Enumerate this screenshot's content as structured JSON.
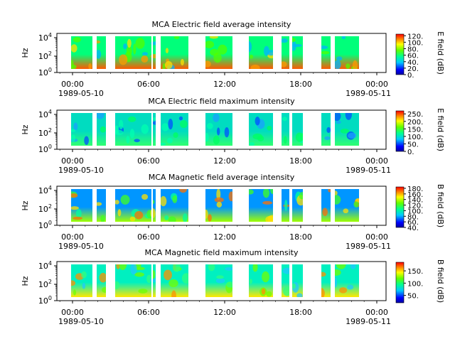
{
  "chart_data": [
    {
      "type": "heatmap",
      "title": "MCA  Electric field average intensity",
      "ylabel": "Hz",
      "y_scale": "log",
      "y_ticks": [
        "10^4",
        "10^2",
        "10^0"
      ],
      "x_ticks": [
        "00:00",
        "06:00",
        "12:00",
        "18:00",
        "00:00"
      ],
      "x_dates": {
        "start": "1989-05-10",
        "end": "1989-05-11"
      },
      "colorbar_label": "E field (dB)",
      "colorbar_ticks": [
        "120.",
        "100.",
        "80.",
        "60.",
        "40.",
        "20.",
        "0."
      ],
      "colorbar_range": [
        0,
        125
      ]
    },
    {
      "type": "heatmap",
      "title": "MCA  Electric field maximum intensity",
      "ylabel": "Hz",
      "y_scale": "log",
      "y_ticks": [
        "10^4",
        "10^2",
        "10^0"
      ],
      "x_ticks": [
        "00:00",
        "06:00",
        "12:00",
        "18:00",
        "00:00"
      ],
      "x_dates": {
        "start": "1989-05-10",
        "end": "1989-05-11"
      },
      "colorbar_label": "E field (dB)",
      "colorbar_ticks": [
        "250.",
        "200.",
        "150.",
        "100.",
        "50.",
        "0."
      ],
      "colorbar_range": [
        0,
        270
      ]
    },
    {
      "type": "heatmap",
      "title": "MCA  Magnetic field average intensity",
      "ylabel": "Hz",
      "y_scale": "log",
      "y_ticks": [
        "10^4",
        "10^2",
        "10^0"
      ],
      "x_ticks": [
        "00:00",
        "06:00",
        "12:00",
        "18:00",
        "00:00"
      ],
      "x_dates": {
        "start": "1989-05-10",
        "end": "1989-05-11"
      },
      "colorbar_label": "B field (dB)",
      "colorbar_ticks": [
        "180.",
        "160.",
        "140.",
        "120.",
        "100.",
        "80.",
        "60.",
        "40."
      ],
      "colorbar_range": [
        40,
        185
      ]
    },
    {
      "type": "heatmap",
      "title": "MCA  Magnetic field maximum intensity",
      "ylabel": "Hz",
      "y_scale": "log",
      "y_ticks": [
        "10^4",
        "10^2",
        "10^0"
      ],
      "x_ticks": [
        "00:00",
        "06:00",
        "12:00",
        "18:00",
        "00:00"
      ],
      "x_dates": {
        "start": "1989-05-10",
        "end": "1989-05-11"
      },
      "colorbar_label": "B field (dB)",
      "colorbar_ticks": [
        "150.",
        "100.",
        "50."
      ],
      "colorbar_range": [
        20,
        185
      ]
    }
  ]
}
